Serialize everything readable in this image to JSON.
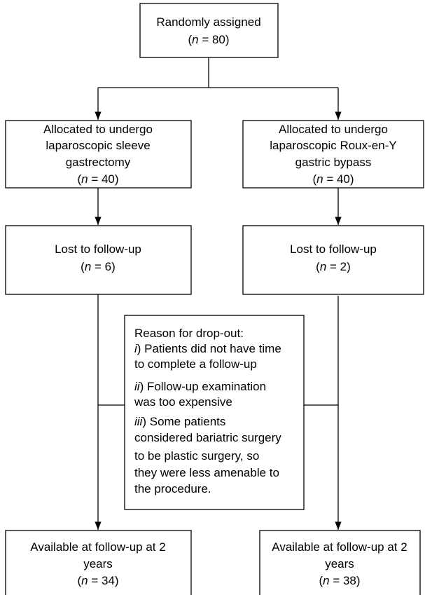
{
  "nodes": [
    {
      "lines": [
        "Randomly assigned",
        "(n = 80)"
      ]
    },
    {
      "lines": [
        "Allocated to undergo",
        "laparoscopic sleeve",
        "gastrectomy",
        "(n = 40)"
      ]
    },
    {
      "lines": [
        "Allocated to undergo",
        "laparoscopic Roux-en-Y",
        "gastric bypass",
        "(n = 40)"
      ]
    },
    {
      "lines": [
        "Lost to follow-up",
        "(n = 6)"
      ]
    },
    {
      "lines": [
        "Lost to follow-up",
        "(n = 2)"
      ]
    },
    {
      "lines": [
        "Reason for drop-out:",
        "i) Patients did not have time",
        "to complete a follow-up",
        "ii) Follow-up examination",
        "was too expensive",
        "iii) Some patients",
        "considered bariatric surgery",
        "to be plastic surgery, so",
        "they were less amenable to",
        "the procedure."
      ]
    },
    {
      "lines": [
        "Available at follow-up at 2",
        "years",
        "(n = 34)"
      ]
    },
    {
      "lines": [
        "Available at follow-up at 2",
        "years",
        "(n = 38)"
      ]
    }
  ]
}
